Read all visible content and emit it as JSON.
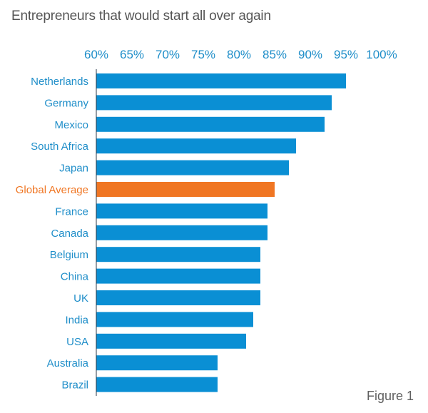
{
  "figure_label": "Figure 1",
  "colors": {
    "bar": "#0a8fd4",
    "highlight": "#f07623",
    "label": "#1f8ec9",
    "title": "#555555",
    "axis": "#2b3a48"
  },
  "chart_data": {
    "type": "bar",
    "orientation": "horizontal",
    "title": "Entrepreneurs that would start all over again",
    "xlabel": "",
    "ylabel": "",
    "xlim": [
      60,
      100
    ],
    "x_ticks": [
      "60%",
      "65%",
      "70%",
      "75%",
      "80%",
      "85%",
      "90%",
      "95%",
      "100%"
    ],
    "x_tick_values": [
      60,
      65,
      70,
      75,
      80,
      85,
      90,
      95,
      100
    ],
    "x_axis_position": "top",
    "grid": false,
    "legend": "none",
    "categories": [
      "Netherlands",
      "Germany",
      "Mexico",
      "South Africa",
      "Japan",
      "Global Average",
      "France",
      "Canada",
      "Belgium",
      "China",
      "UK",
      "India",
      "USA",
      "Australia",
      "Brazil"
    ],
    "values": [
      95,
      93,
      92,
      88,
      87,
      85,
      84,
      84,
      83,
      83,
      83,
      82,
      81,
      77,
      77
    ],
    "highlight": [
      "Global Average"
    ],
    "unit": "%"
  }
}
